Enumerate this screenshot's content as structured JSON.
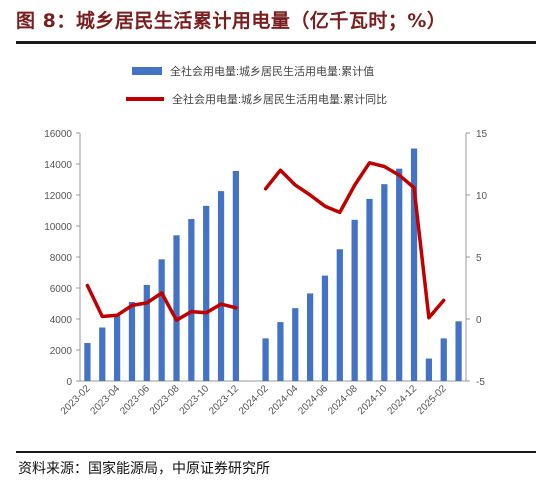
{
  "header": {
    "title": "图 8：城乡居民生活累计用电量（亿千瓦时；%）"
  },
  "footer": {
    "source": "资料来源：国家能源局，中原证券研究所"
  },
  "colors": {
    "bar": "#4472C4",
    "line": "#C00000",
    "title": "#7a1f1f"
  },
  "chart_data": {
    "type": "bar",
    "categories": [
      "2023-02",
      "2023-03",
      "2023-04",
      "2023-05",
      "2023-06",
      "2023-07",
      "2023-08",
      "2023-09",
      "2023-10",
      "2023-11",
      "2023-12",
      "2024-01",
      "2024-02",
      "2024-03",
      "2024-04",
      "2024-05",
      "2024-06",
      "2024-07",
      "2024-08",
      "2024-09",
      "2024-10",
      "2024-11",
      "2024-12",
      "2025-01",
      "2025-02",
      "2025-03"
    ],
    "x_tick_labels": [
      "2023-02",
      "2023-04",
      "2023-06",
      "2023-08",
      "2023-10",
      "2023-12",
      "2024-02",
      "2024-04",
      "2024-06",
      "2024-08",
      "2024-10",
      "2024-12",
      "2025-02"
    ],
    "series": [
      {
        "name": "全社会用电量:城乡居民生活用电量:累计值",
        "type": "bar",
        "axis": "left",
        "values": [
          2450,
          3450,
          4250,
          5100,
          6200,
          7850,
          9400,
          10450,
          11300,
          12250,
          13550,
          null,
          2750,
          3800,
          4700,
          5650,
          6800,
          8500,
          10400,
          11750,
          12700,
          13700,
          15000,
          1450,
          2750,
          3850
        ]
      },
      {
        "name": "全社会用电量:城乡居民生活用电量:累计同比",
        "type": "line",
        "axis": "right",
        "values": [
          2.7,
          0.2,
          0.3,
          1.1,
          1.3,
          2.1,
          -0.1,
          0.6,
          0.5,
          1.2,
          0.9,
          null,
          10.5,
          12.0,
          10.8,
          10.0,
          9.1,
          8.6,
          10.8,
          12.6,
          12.3,
          11.6,
          10.6,
          0.1,
          1.5,
          null
        ]
      }
    ],
    "left_axis": {
      "ylim": [
        0,
        16000
      ],
      "ticks": [
        0,
        2000,
        4000,
        6000,
        8000,
        10000,
        12000,
        14000,
        16000
      ]
    },
    "right_axis": {
      "ylim": [
        -5,
        15
      ],
      "ticks": [
        -5,
        0,
        5,
        10,
        15
      ]
    },
    "legend_position": "top",
    "grid": false
  }
}
